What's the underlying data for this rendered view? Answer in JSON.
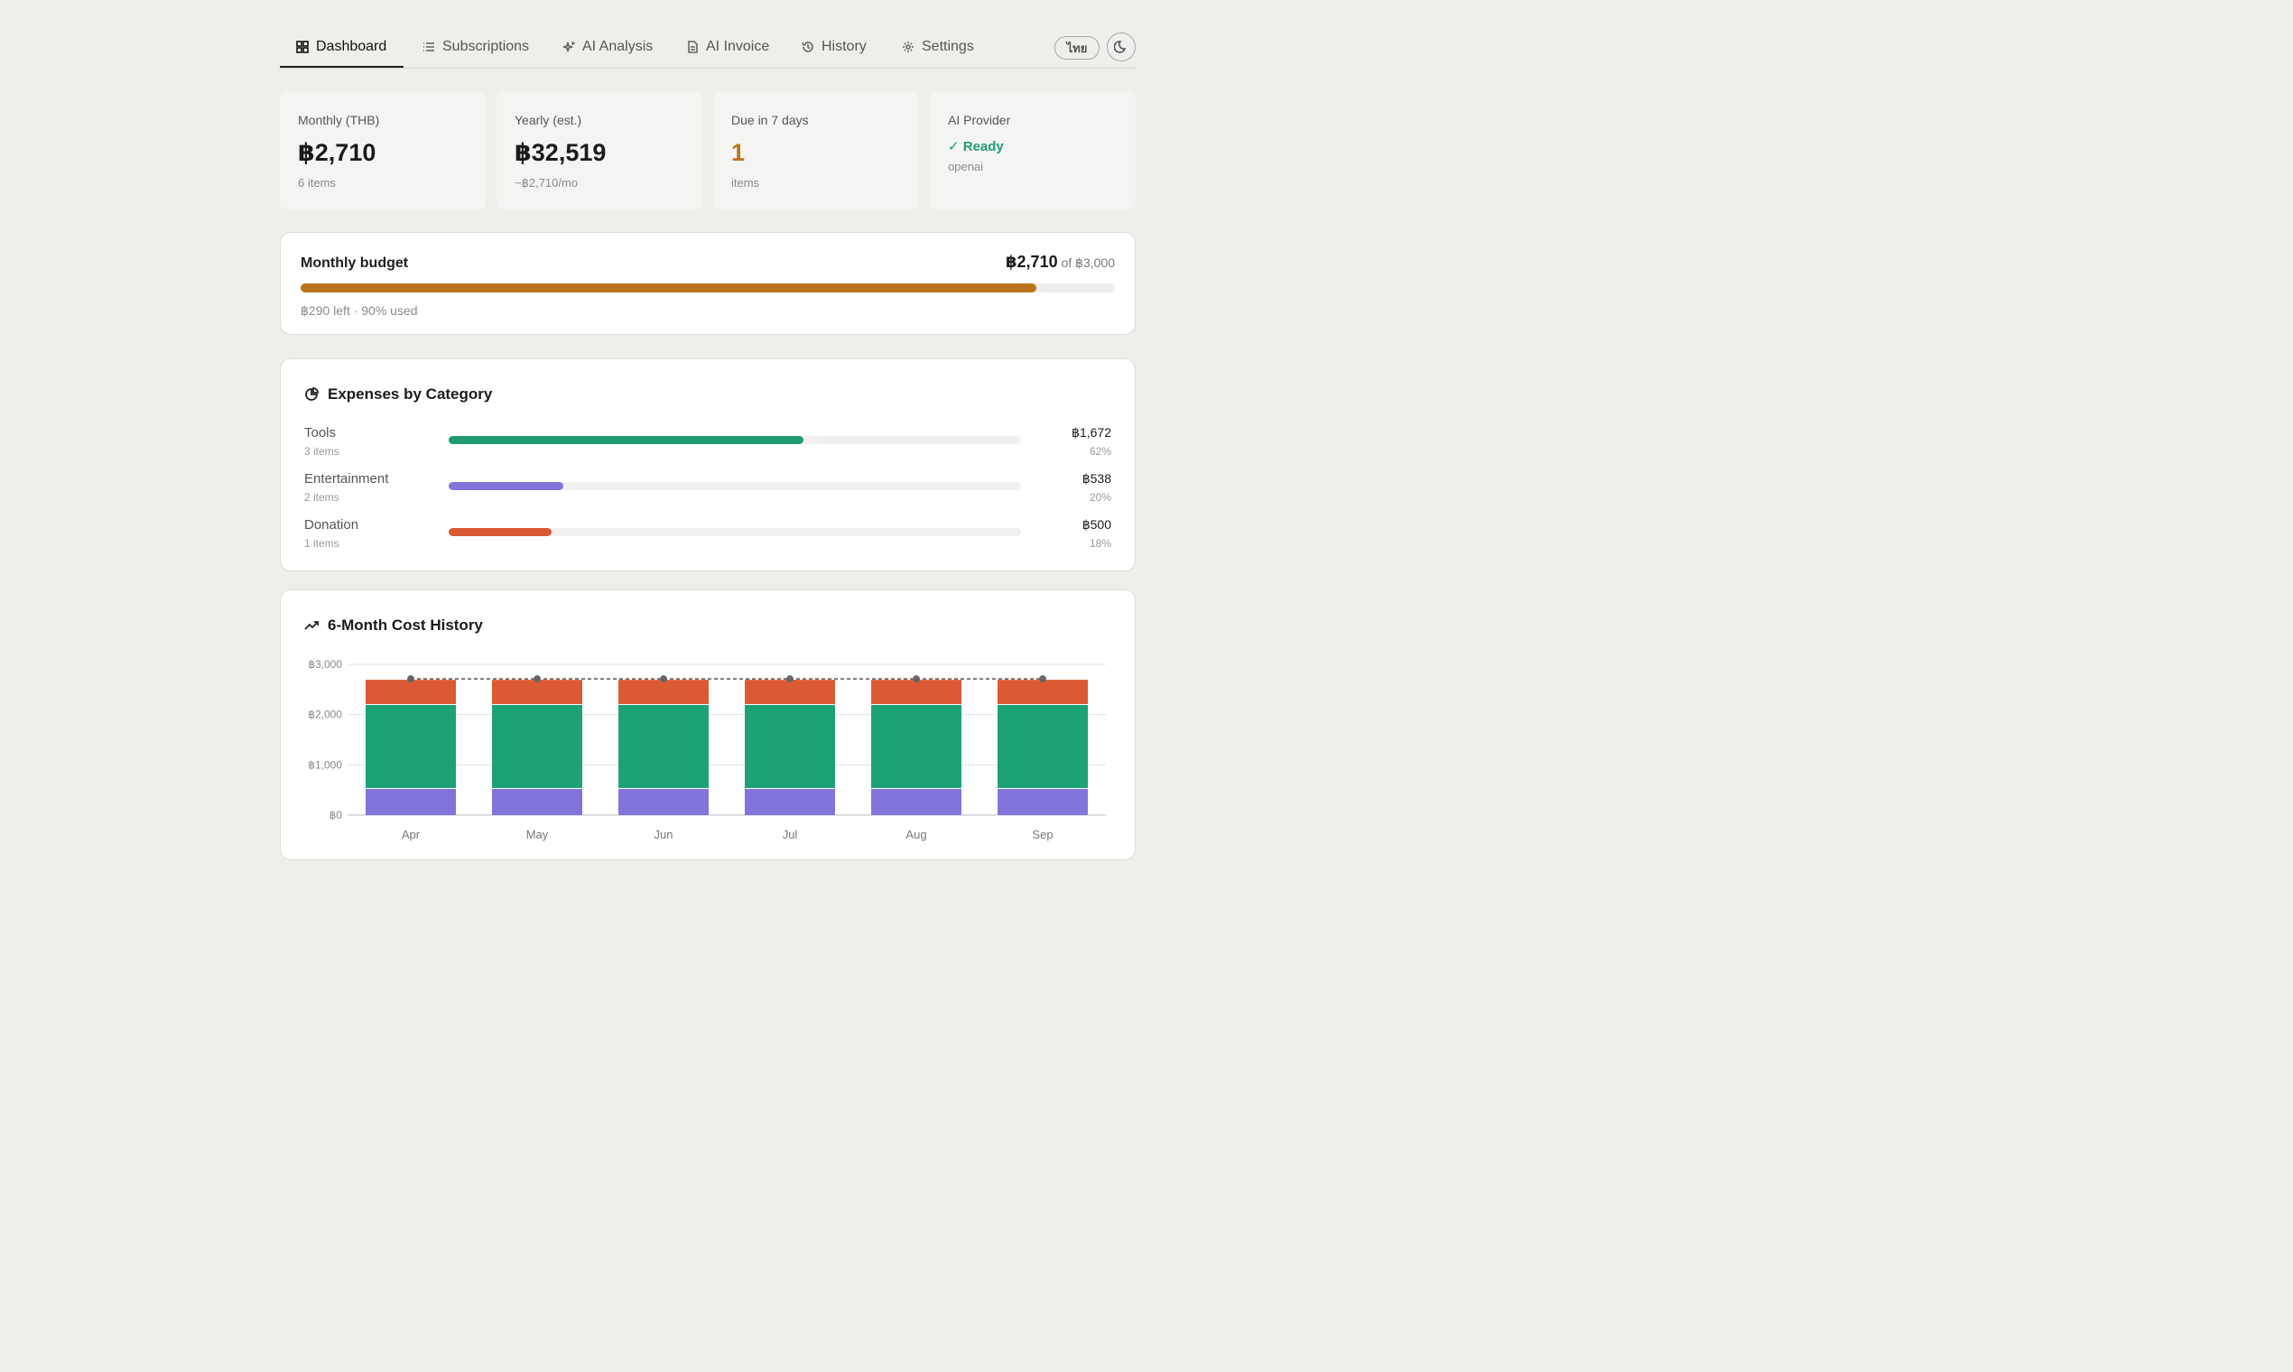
{
  "nav": {
    "tabs": [
      {
        "label": "Dashboard",
        "icon": "grid-icon"
      },
      {
        "label": "Subscriptions",
        "icon": "list-icon"
      },
      {
        "label": "AI Analysis",
        "icon": "sparkle-icon"
      },
      {
        "label": "AI Invoice",
        "icon": "document-icon"
      },
      {
        "label": "History",
        "icon": "history-icon"
      },
      {
        "label": "Settings",
        "icon": "gear-icon"
      }
    ],
    "active_tab": "Dashboard",
    "language_label": "ไทย",
    "theme_icon": "moon-icon"
  },
  "stats": {
    "monthly": {
      "label": "Monthly (THB)",
      "value": "฿2,710",
      "sub": "6 items"
    },
    "yearly": {
      "label": "Yearly (est.)",
      "value": "฿32,519",
      "sub": "~฿2,710/mo"
    },
    "due": {
      "label": "Due in 7 days",
      "value": "1",
      "sub": "items"
    },
    "ai": {
      "label": "AI Provider",
      "status": "✓ Ready",
      "provider": "openai"
    }
  },
  "budget": {
    "title": "Monthly budget",
    "spent": "฿2,710",
    "of_text": "of ฿3,000",
    "used_fraction": 0.9033,
    "note": "฿290 left · 90% used",
    "color": "#b8741a"
  },
  "categories": {
    "title": "Expenses by Category",
    "icon": "pie-chart-icon",
    "items": [
      {
        "name": "Tools",
        "count": "3 items",
        "amount": "฿1,672",
        "pct": "62%",
        "fraction": 0.62,
        "color": "#1e9c6e"
      },
      {
        "name": "Entertainment",
        "count": "2 items",
        "amount": "฿538",
        "pct": "20%",
        "fraction": 0.2,
        "color": "#8175dc"
      },
      {
        "name": "Donation",
        "count": "1 items",
        "amount": "฿500",
        "pct": "18%",
        "fraction": 0.18,
        "color": "#dc5a33"
      }
    ]
  },
  "history": {
    "title": "6-Month Cost History",
    "icon": "trend-up-icon"
  },
  "chart_data": {
    "type": "bar",
    "stacked": true,
    "categories": [
      "Apr",
      "May",
      "Jun",
      "Jul",
      "Aug",
      "Sep"
    ],
    "series": [
      {
        "values": [
          538,
          538,
          538,
          538,
          538,
          538
        ],
        "color": "#8175dc"
      },
      {
        "values": [
          1672,
          1672,
          1672,
          1672,
          1672,
          1672
        ],
        "color": "#1da277"
      },
      {
        "values": [
          500,
          500,
          500,
          500,
          500,
          500
        ],
        "color": "#dc5a33"
      }
    ],
    "line": {
      "values": [
        2710,
        2710,
        2710,
        2710,
        2710,
        2710
      ],
      "style": "dashed",
      "color": "#555555"
    },
    "yticks": [
      "฿0",
      "฿1,000",
      "฿2,000",
      "฿3,000"
    ],
    "ytick_values": [
      0,
      1000,
      2000,
      3000
    ],
    "ylim": [
      0,
      3000
    ],
    "grid": true
  }
}
